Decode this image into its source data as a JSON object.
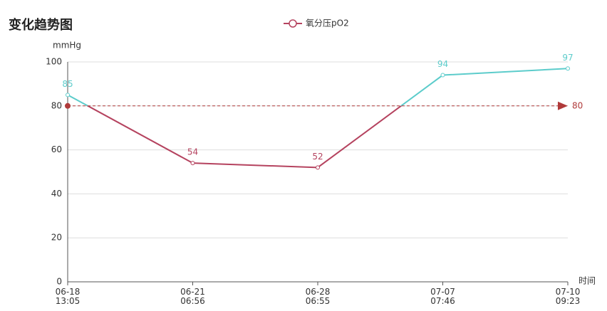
{
  "chart_data": {
    "type": "line",
    "title": "变化趋势图",
    "y_label": "mmHg",
    "x_label": "时间",
    "categories": [
      "06-18\n13:05",
      "06-21\n06:56",
      "06-28\n06:55",
      "07-07\n07:46",
      "07-10\n09:23"
    ],
    "series": [
      {
        "name": "氧分压pO2",
        "color": "#b5435f",
        "values": [
          85,
          54,
          52,
          94,
          97
        ]
      }
    ],
    "ylim": [
      0,
      100
    ],
    "yticks": [
      0,
      20,
      40,
      60,
      80,
      100
    ],
    "grid": true,
    "threshold": {
      "value": 80,
      "color_above": "#5ccccb",
      "color_below": "#b5435f"
    },
    "mark_line": {
      "value": 80,
      "color": "#b03a3a"
    }
  }
}
